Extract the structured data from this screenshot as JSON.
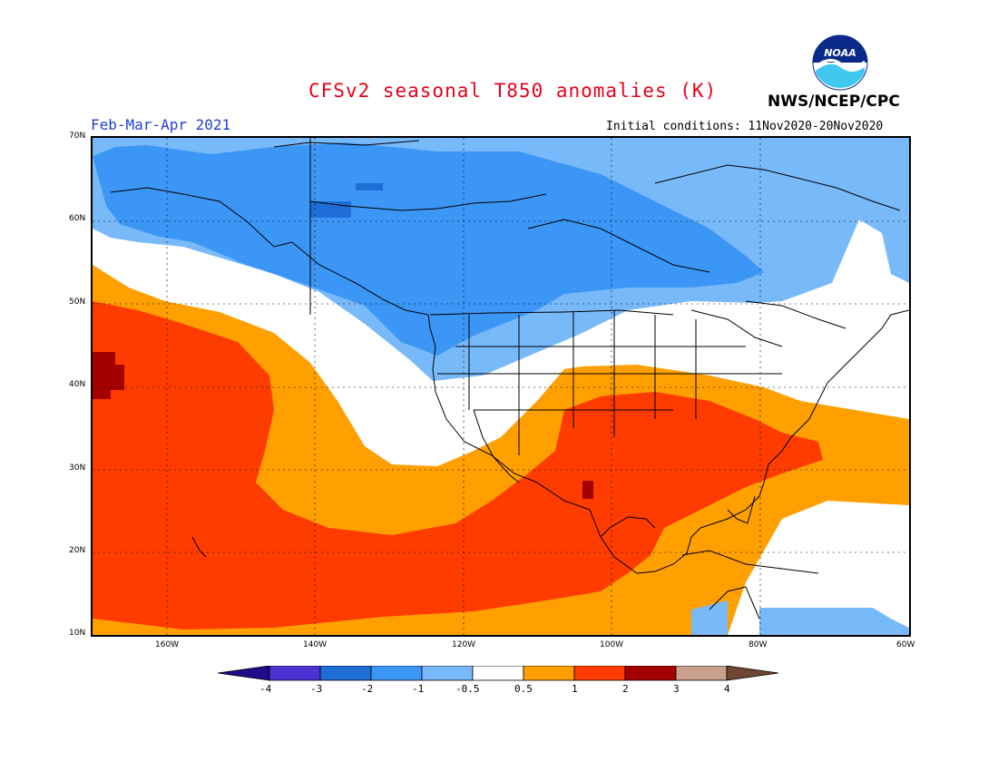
{
  "header": {
    "title": "CFSv2 seasonal T850 anomalies (K)",
    "agency": "NWS/NCEP/CPC",
    "season": "Feb-Mar-Apr 2021",
    "initial_conditions": "Initial conditions: 11Nov2020-20Nov2020",
    "logo_text": "NOAA"
  },
  "map": {
    "lat_labels": [
      "70N",
      "60N",
      "50N",
      "40N",
      "30N",
      "20N",
      "10N"
    ],
    "lon_labels": [
      "160W",
      "140W",
      "120W",
      "100W",
      "80W",
      "60W"
    ],
    "colors": {
      "neg4": "#1f0a8c",
      "neg3": "#4b32d2",
      "neg2": "#1e6ed6",
      "neg1": "#3c96f5",
      "neg05": "#78b9fa",
      "neutral": "#ffffff",
      "pos05": "#ffa000",
      "pos1": "#ff3c00",
      "pos2": "#a50000",
      "pos3": "#c8a08c",
      "pos4": "#6e4632"
    }
  },
  "colorbar": {
    "labels": [
      "-4",
      "-3",
      "-2",
      "-1",
      "-0.5",
      "0.5",
      "1",
      "2",
      "3",
      "4"
    ]
  }
}
